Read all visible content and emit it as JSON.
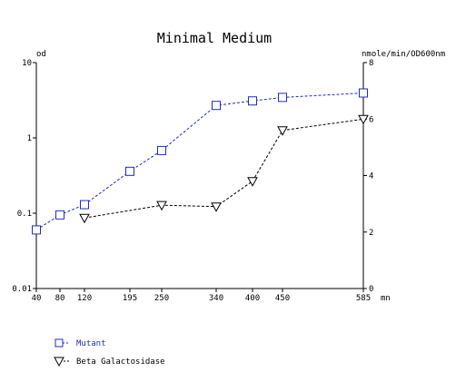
{
  "chart_data": {
    "type": "line",
    "title": "Minimal Medium",
    "left_axis_label": "od",
    "right_axis_label": "nmole/min/OD600nm",
    "x_unit_label": "mn",
    "x_ticks": [
      40,
      80,
      120,
      195,
      250,
      340,
      400,
      450,
      585
    ],
    "x_range": [
      40,
      585
    ],
    "left_axis": {
      "scale": "log",
      "range": [
        0.01,
        10
      ],
      "tick_labels": [
        "10",
        "1",
        "0.1",
        "0.01"
      ],
      "tick_values": [
        10,
        1,
        0.1,
        0.01
      ]
    },
    "right_axis": {
      "scale": "linear",
      "range": [
        0,
        8
      ],
      "tick_labels": [
        "8",
        "6",
        "4",
        "2",
        "0"
      ],
      "tick_values": [
        8,
        6,
        4,
        2,
        0
      ]
    },
    "grid": false,
    "legend_position": "bottom-left",
    "series": [
      {
        "name": "Mutant",
        "axis": "left",
        "marker": "square",
        "line_style": "dashed",
        "color": "#1f2bc8",
        "x": [
          40,
          80,
          120,
          195,
          250,
          340,
          400,
          450,
          585
        ],
        "y": [
          0.06,
          0.095,
          0.13,
          0.36,
          0.68,
          2.7,
          3.1,
          3.45,
          3.95
        ]
      },
      {
        "name": "Beta Galactosidase",
        "axis": "right",
        "marker": "triangle-down",
        "line_style": "dashed",
        "color": "#000000",
        "x": [
          120,
          250,
          340,
          400,
          450,
          585
        ],
        "y": [
          2.5,
          2.95,
          2.9,
          3.8,
          5.6,
          6.0
        ]
      }
    ]
  }
}
